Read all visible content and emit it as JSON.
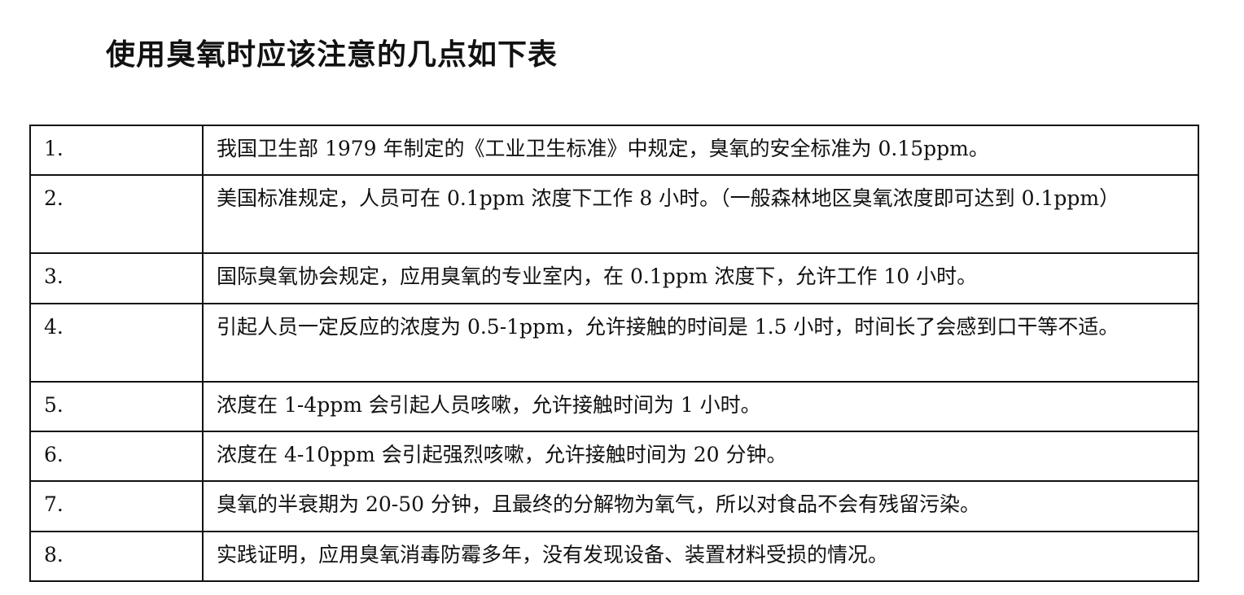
{
  "title": "使用臭氧时应该注意的几点如下表",
  "rows": [
    {
      "num": "1.",
      "text": "我国卫生部 1979 年制定的《工业卫生标准》中规定，臭氧的安全标准为 0.15ppm。"
    },
    {
      "num": "2.",
      "text": "美国标准规定，人员可在 0.1ppm 浓度下工作 8 小时。（一般森林地区臭氧浓度即可达到 0.1ppm）"
    },
    {
      "num": "3.",
      "text": "国际臭氧协会规定，应用臭氧的专业室内，在 0.1ppm 浓度下，允许工作 10 小时。"
    },
    {
      "num": "4.",
      "text": "引起人员一定反应的浓度为 0.5-1ppm，允许接触的时间是 1.5 小时，时间长了会感到口干等不适。"
    },
    {
      "num": "5.",
      "text": "浓度在 1-4ppm 会引起人员咳嗽，允许接触时间为 1 小时。"
    },
    {
      "num": "6.",
      "text": "浓度在 4-10ppm 会引起强烈咳嗽，允许接触时间为 20 分钟。"
    },
    {
      "num": "7.",
      "text": "臭氧的半衰期为 20-50 分钟，且最终的分解物为氧气，所以对食品不会有残留污染。"
    },
    {
      "num": "8.",
      "text": "实践证明，应用臭氧消毒防霉多年，没有发现设备、装置材料受损的情况。"
    }
  ]
}
